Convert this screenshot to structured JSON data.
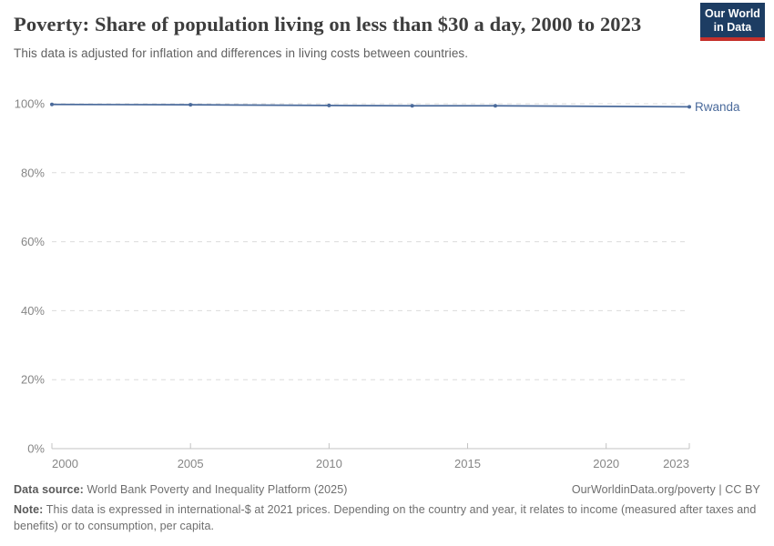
{
  "header": {
    "title": "Poverty: Share of population living on less than $30 a day, 2000 to 2023",
    "subtitle": "This data is adjusted for inflation and differences in living costs between countries."
  },
  "logo": {
    "line1": "Our World",
    "line2": "in Data",
    "bg_color": "#1d3d63",
    "bar_color": "#c5302b"
  },
  "chart_data": {
    "type": "line",
    "title": "Poverty: Share of population living on less than $30 a day, 2000 to 2023",
    "xlabel": "",
    "ylabel": "",
    "xlim": [
      2000,
      2023
    ],
    "ylim": [
      0,
      100
    ],
    "xticks": [
      2000,
      2005,
      2010,
      2015,
      2020,
      2023
    ],
    "yticks": [
      0,
      20,
      40,
      60,
      80,
      100
    ],
    "ytick_suffix": "%",
    "grid": "horizontal-dashed",
    "legend_position": "end-of-line-label",
    "series": [
      {
        "name": "Rwanda",
        "color": "#4a6a9b",
        "x": [
          2000,
          2005,
          2010,
          2013,
          2016,
          2023
        ],
        "values": [
          99.8,
          99.7,
          99.5,
          99.4,
          99.4,
          99.1
        ]
      }
    ],
    "colors": {
      "grid": "#dcdcdc",
      "axis": "#c3c3c3",
      "tick_text": "#868686"
    }
  },
  "footer": {
    "source_label": "Data source:",
    "source_text": " World Bank Poverty and Inequality Platform (2025)",
    "attribution": "OurWorldinData.org/poverty | CC BY",
    "note_label": "Note:",
    "note_text": " This data is expressed in international-$ at 2021 prices. Depending on the country and year, it relates to income (measured after taxes and benefits) or to consumption, per capita."
  }
}
